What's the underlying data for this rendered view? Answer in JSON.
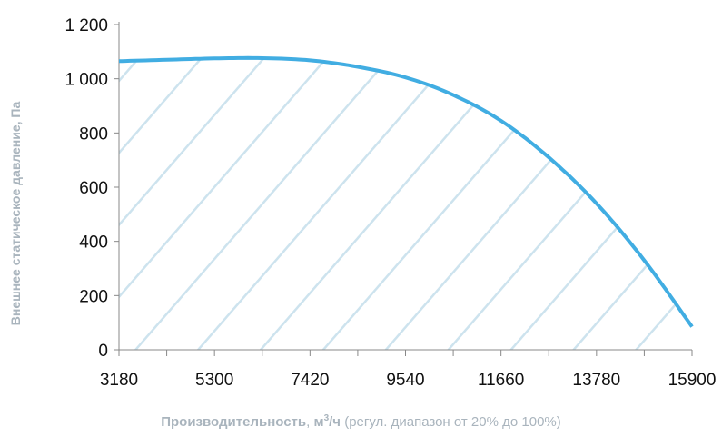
{
  "chart_data": {
    "type": "area",
    "title": "",
    "ylabel": "Внешнее статическое давление, Па",
    "xlabel": {
      "bold_part": "Производительность",
      "sep": ", ",
      "unit_base": "м",
      "unit_exp": "3",
      "unit_tail": "/ч",
      "note": " (регул. диапазон от 20% до 100%)"
    },
    "x_ticks": [
      "3180",
      "5300",
      "7420",
      "9540",
      "11660",
      "13780",
      "15900"
    ],
    "y_ticks": [
      "0",
      "200",
      "400",
      "600",
      "800",
      "1 000",
      "1 200"
    ],
    "xlim": [
      3180,
      15900
    ],
    "ylim": [
      0,
      1200
    ],
    "grid": false,
    "fill_pattern": "diagonal hatch",
    "series": [
      {
        "values": [
          [
            3180,
            1065
          ],
          [
            4240,
            1070
          ],
          [
            5300,
            1075
          ],
          [
            6360,
            1076
          ],
          [
            7420,
            1068
          ],
          [
            8480,
            1044
          ],
          [
            9540,
            1005
          ],
          [
            10600,
            940
          ],
          [
            11660,
            845
          ],
          [
            12720,
            710
          ],
          [
            13780,
            540
          ],
          [
            14840,
            330
          ],
          [
            15900,
            85
          ]
        ]
      }
    ],
    "colors": {
      "line": "#41ade2",
      "hatch": "#cde3ee",
      "axis": "#888888"
    }
  }
}
